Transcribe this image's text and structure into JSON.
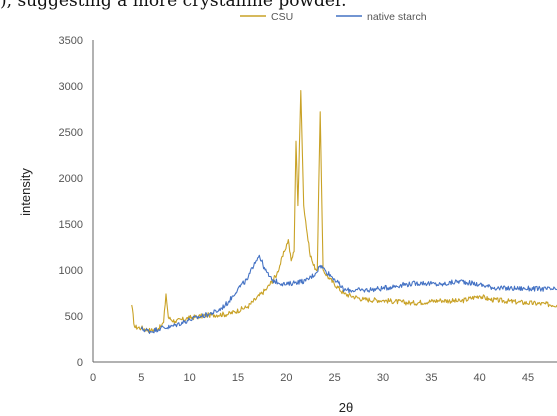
{
  "caption_fragment": "), suggesting a more crystalline powder.",
  "chart_data": {
    "type": "line",
    "title": "",
    "xlabel": "2θ",
    "ylabel": "intensity",
    "xlim": [
      0,
      48
    ],
    "ylim": [
      0,
      3500
    ],
    "x_ticks": [
      0,
      5,
      10,
      15,
      20,
      25,
      30,
      35,
      40,
      45
    ],
    "y_ticks": [
      0,
      500,
      1000,
      1500,
      2000,
      2500,
      3000,
      3500
    ],
    "grid": false,
    "legend": "top-center",
    "series": [
      {
        "name": "CSU",
        "color": "#c9a227",
        "points": [
          [
            4.0,
            620
          ],
          [
            4.3,
            380
          ],
          [
            5.0,
            370
          ],
          [
            6.0,
            340
          ],
          [
            7.0,
            380
          ],
          [
            7.3,
            430
          ],
          [
            7.55,
            740
          ],
          [
            7.8,
            480
          ],
          [
            8.5,
            440
          ],
          [
            10.0,
            480
          ],
          [
            12.0,
            510
          ],
          [
            14.0,
            520
          ],
          [
            16.0,
            600
          ],
          [
            18.0,
            800
          ],
          [
            19.0,
            950
          ],
          [
            19.8,
            1200
          ],
          [
            20.2,
            1330
          ],
          [
            20.5,
            1100
          ],
          [
            20.8,
            1200
          ],
          [
            21.0,
            2400
          ],
          [
            21.2,
            1700
          ],
          [
            21.5,
            2950
          ],
          [
            21.8,
            1700
          ],
          [
            22.0,
            1530
          ],
          [
            22.4,
            1200
          ],
          [
            22.8,
            1050
          ],
          [
            23.2,
            1000
          ],
          [
            23.5,
            2720
          ],
          [
            23.8,
            1000
          ],
          [
            24.5,
            900
          ],
          [
            26.0,
            740
          ],
          [
            28.0,
            680
          ],
          [
            30.0,
            670
          ],
          [
            33.0,
            640
          ],
          [
            36.0,
            670
          ],
          [
            38.0,
            660
          ],
          [
            40.0,
            720
          ],
          [
            41.0,
            680
          ],
          [
            44.0,
            650
          ],
          [
            48.0,
            620
          ]
        ]
      },
      {
        "name": "native starch",
        "color": "#4472c4",
        "points": [
          [
            5.0,
            360
          ],
          [
            6.0,
            330
          ],
          [
            7.0,
            370
          ],
          [
            8.0,
            380
          ],
          [
            10.0,
            460
          ],
          [
            12.0,
            520
          ],
          [
            13.0,
            560
          ],
          [
            14.0,
            650
          ],
          [
            15.0,
            800
          ],
          [
            16.0,
            900
          ],
          [
            16.7,
            1080
          ],
          [
            17.2,
            1160
          ],
          [
            17.8,
            1000
          ],
          [
            18.5,
            890
          ],
          [
            20.0,
            840
          ],
          [
            21.0,
            870
          ],
          [
            22.0,
            880
          ],
          [
            23.0,
            960
          ],
          [
            23.5,
            1050
          ],
          [
            24.0,
            1000
          ],
          [
            25.0,
            900
          ],
          [
            26.0,
            780
          ],
          [
            28.0,
            780
          ],
          [
            30.0,
            800
          ],
          [
            32.0,
            840
          ],
          [
            34.0,
            860
          ],
          [
            36.0,
            840
          ],
          [
            38.0,
            880
          ],
          [
            40.0,
            840
          ],
          [
            42.0,
            800
          ],
          [
            44.0,
            800
          ],
          [
            48.0,
            790
          ]
        ]
      }
    ]
  }
}
